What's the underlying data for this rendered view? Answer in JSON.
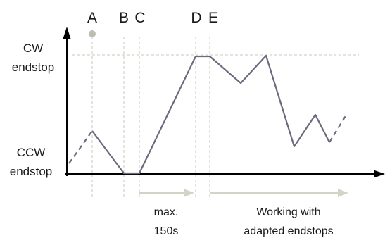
{
  "markers": {
    "a": "A",
    "b": "B",
    "c": "C",
    "d": "D",
    "e": "E"
  },
  "y_axis": {
    "cw_line1": "CW",
    "cw_line2": "endstop",
    "ccw_line1": "CCW",
    "ccw_line2": "endstop"
  },
  "annotations": {
    "timeout_line1": "max.",
    "timeout_line2": "150s",
    "adapted_line1": "Working with",
    "adapted_line2": "adapted endstops"
  },
  "colors": {
    "trace": "#6b6b80",
    "guide": "#c9c9b8",
    "arrow": "#d4d4c6",
    "axis": "#000000",
    "point_a": "#bdbdb0"
  }
}
